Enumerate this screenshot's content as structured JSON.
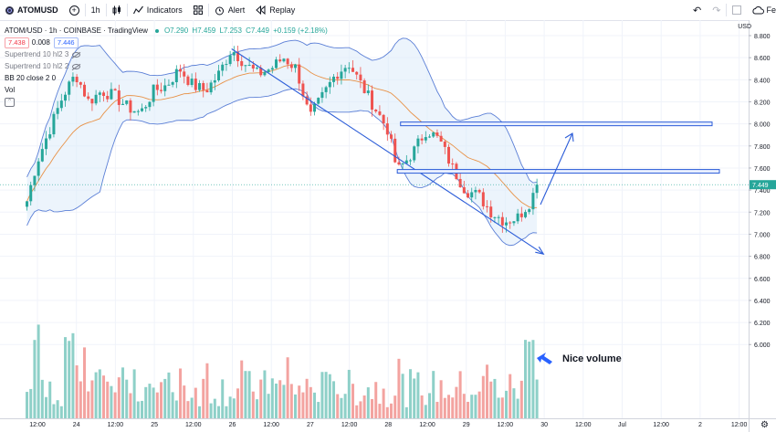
{
  "toolbar": {
    "symbol": "ATOMUSD",
    "interval": "1h",
    "indicators_label": "Indicators",
    "alert_label": "Alert",
    "replay_label": "Replay",
    "right_cut_label": "Fe"
  },
  "legend": {
    "title": "ATOM/USD · 1h · COINBASE · TradingView",
    "ohlc": {
      "o": "O7.290",
      "h": "H7.459",
      "l": "L7.253",
      "c": "C7.449",
      "chg": "+0.159 (+2.18%)"
    },
    "bid": "7.438",
    "spread": "0.008",
    "ask": "7.446",
    "supertrend1": "Supertrend 10 hl2 3",
    "supertrend2": "Supertrend 10 hl2 2",
    "bb": "BB 20 close 2 0",
    "vol": "Vol"
  },
  "price_scale_label": "USD",
  "annotation_text": "Nice volume",
  "colors": {
    "up": "#26a69a",
    "down": "#ef5350",
    "up_vol": "#8ed0c8",
    "down_vol": "#f3a3a0",
    "band": "#5b7fd6",
    "basis": "#e89146",
    "drawing": "#2b5cd8"
  },
  "chart_data": {
    "type": "candlestick",
    "symbol": "ATOM/USD",
    "interval": "1h",
    "y_ticks": [
      6.0,
      6.2,
      6.4,
      6.6,
      6.8,
      7.0,
      7.2,
      7.4,
      7.6,
      7.8,
      8.0,
      8.2,
      8.4,
      8.6,
      8.8
    ],
    "ylim": [
      5.45,
      8.8
    ],
    "x_tick_labels": [
      "12:00",
      "24",
      "12:00",
      "25",
      "12:00",
      "26",
      "12:00",
      "27",
      "12:00",
      "28",
      "12:00",
      "29",
      "12:00",
      "30",
      "12:00",
      "Jul",
      "12:00",
      "2",
      "12:00"
    ],
    "last_close": 7.449,
    "resistance_levels": [
      8.0,
      7.57
    ],
    "trendline": {
      "from": {
        "x": "26 00:00",
        "y": 8.68
      },
      "to": {
        "x": "30 00:00",
        "y": 6.82
      }
    },
    "candles_close_anchors": [
      [
        "23 09:00",
        7.3
      ],
      [
        "23 12:00",
        7.65
      ],
      [
        "23 16:00",
        7.95
      ],
      [
        "23 20:00",
        8.25
      ],
      [
        "24 00:00",
        8.45
      ],
      [
        "24 04:00",
        8.2
      ],
      [
        "24 08:00",
        8.3
      ],
      [
        "24 12:00",
        8.25
      ],
      [
        "24 16:00",
        8.15
      ],
      [
        "24 20:00",
        8.1
      ],
      [
        "25 00:00",
        8.3
      ],
      [
        "25 04:00",
        8.35
      ],
      [
        "25 08:00",
        8.5
      ],
      [
        "25 12:00",
        8.35
      ],
      [
        "25 16:00",
        8.3
      ],
      [
        "25 20:00",
        8.45
      ],
      [
        "26 00:00",
        8.68
      ],
      [
        "26 04:00",
        8.55
      ],
      [
        "26 08:00",
        8.45
      ],
      [
        "26 12:00",
        8.5
      ],
      [
        "26 16:00",
        8.6
      ],
      [
        "26 20:00",
        8.5
      ],
      [
        "27 00:00",
        8.05
      ],
      [
        "27 04:00",
        8.25
      ],
      [
        "27 08:00",
        8.45
      ],
      [
        "27 12:00",
        8.55
      ],
      [
        "27 16:00",
        8.35
      ],
      [
        "27 20:00",
        8.15
      ],
      [
        "28 00:00",
        7.95
      ],
      [
        "28 03:00",
        7.57
      ],
      [
        "28 08:00",
        7.75
      ],
      [
        "28 12:00",
        7.95
      ],
      [
        "28 16:00",
        7.85
      ],
      [
        "28 20:00",
        7.6
      ],
      [
        "29 00:00",
        7.4
      ],
      [
        "29 04:00",
        7.35
      ],
      [
        "29 08:00",
        7.2
      ],
      [
        "29 12:00",
        7.12
      ],
      [
        "29 16:00",
        7.15
      ],
      [
        "29 20:00",
        7.3
      ],
      [
        "29 22:00",
        7.449
      ]
    ],
    "volume": {
      "max_visible": 0.25,
      "spikes": [
        "23 12:00",
        "23 22:00",
        "29 20:00"
      ]
    }
  }
}
